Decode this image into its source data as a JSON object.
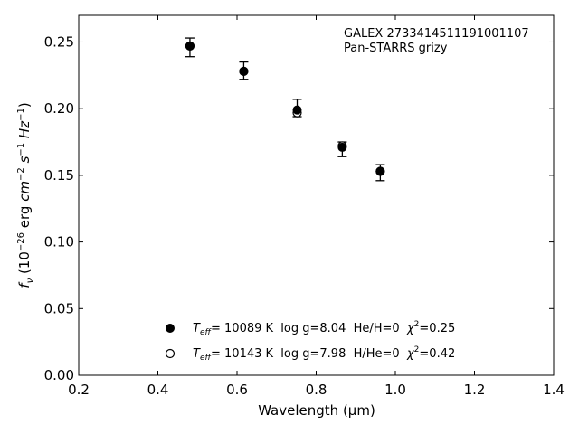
{
  "chart_data": {
    "type": "scatter",
    "title": "",
    "xlabel": "Wavelength (μm)",
    "ylabel": "fν (10⁻²⁶ erg cm⁻² s⁻¹ Hz⁻¹)",
    "xlim": [
      0.2,
      1.4
    ],
    "ylim": [
      0.0,
      0.27
    ],
    "x_ticks": [
      0.2,
      0.4,
      0.6,
      0.8,
      1.0,
      1.2,
      1.4
    ],
    "x_tick_labels": [
      "0.2",
      "0.4",
      "0.6",
      "0.8",
      "1.0",
      "1.2",
      "1.4"
    ],
    "y_ticks": [
      0.0,
      0.05,
      0.1,
      0.15,
      0.2,
      0.25
    ],
    "y_tick_labels": [
      "0.00",
      "0.05",
      "0.10",
      "0.15",
      "0.20",
      "0.25"
    ],
    "grid": false,
    "annotation_lines": [
      "GALEX 2733414511191001107",
      "Pan-STARRS grizy"
    ],
    "series": [
      {
        "name": "Teff= 10089 K  log g=8.04  He/H=0  χ²=0.25",
        "marker": "filled-circle",
        "color": "#000000",
        "x": [
          0.481,
          0.617,
          0.752,
          0.866,
          0.962
        ],
        "y": [
          0.247,
          0.228,
          0.199,
          0.171,
          0.153
        ],
        "errors": [
          [
            0.239,
            0.253
          ],
          [
            0.222,
            0.235
          ],
          [
            0.194,
            0.207
          ],
          [
            0.164,
            0.175
          ],
          [
            0.146,
            0.158
          ]
        ]
      },
      {
        "name": "Teff= 10143 K  log g=7.98  H/He=0  χ²=0.42",
        "marker": "open-circle",
        "color": "#000000",
        "x": [
          0.481,
          0.617,
          0.752,
          0.866,
          0.962
        ],
        "y": [
          0.247,
          0.228,
          0.197,
          0.172,
          0.153
        ]
      }
    ],
    "legend": {
      "placement": "lower-center",
      "entries": [
        {
          "marker": "filled-circle",
          "name_plain": "= 10089 K  log g=8.04  He/H=0  ",
          "chi": "=0.25"
        },
        {
          "marker": "open-circle",
          "name_plain": "= 10143 K  log g=7.98  H/He=0  ",
          "chi": "=0.42"
        }
      ]
    }
  }
}
